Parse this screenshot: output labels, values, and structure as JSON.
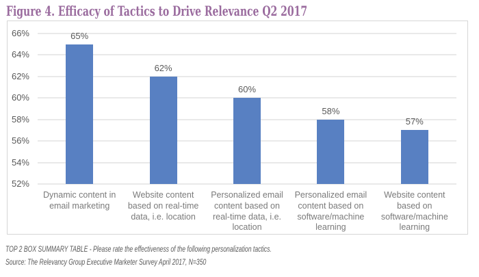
{
  "title": "Figure 4. Efficacy of Tactics to Drive Relevance Q2 2017",
  "colors": {
    "background": "#ffffff",
    "title": "#9a6b9e",
    "bar": "#5880c2",
    "grid": "#e9e9e9",
    "box_border": "#d6d6d6",
    "axis_text": "#595959",
    "data_label": "#595959",
    "category_text": "#7a7a7a",
    "footnote": "#595959"
  },
  "chart_data": {
    "type": "bar",
    "title": "Figure 4. Efficacy of Tactics to Drive Relevance Q2 2017",
    "categories": [
      "Dynamic content in email marketing",
      "Website content based on real-time data, i.e. location",
      "Personalized email content based on real-time data, i.e. location",
      "Personalized email content based on software/machine learning",
      "Website content based on software/machine learning"
    ],
    "values": [
      65,
      62,
      60,
      58,
      57
    ],
    "data_labels": [
      "65%",
      "62%",
      "60%",
      "58%",
      "57%"
    ],
    "ylim": [
      52,
      66
    ],
    "ytick_step": 2,
    "ytick_labels": [
      "52%",
      "54%",
      "56%",
      "58%",
      "60%",
      "62%",
      "64%",
      "66%"
    ],
    "xlabel": "",
    "ylabel": "",
    "grid": true,
    "legend": "none"
  },
  "footnotes": {
    "line1": "TOP 2 BOX SUMMARY TABLE - Please rate the effectiveness of the following personalization tactics.",
    "line2": "Source: The Relevancy Group Executive Marketer Survey April 2017, N=350"
  }
}
